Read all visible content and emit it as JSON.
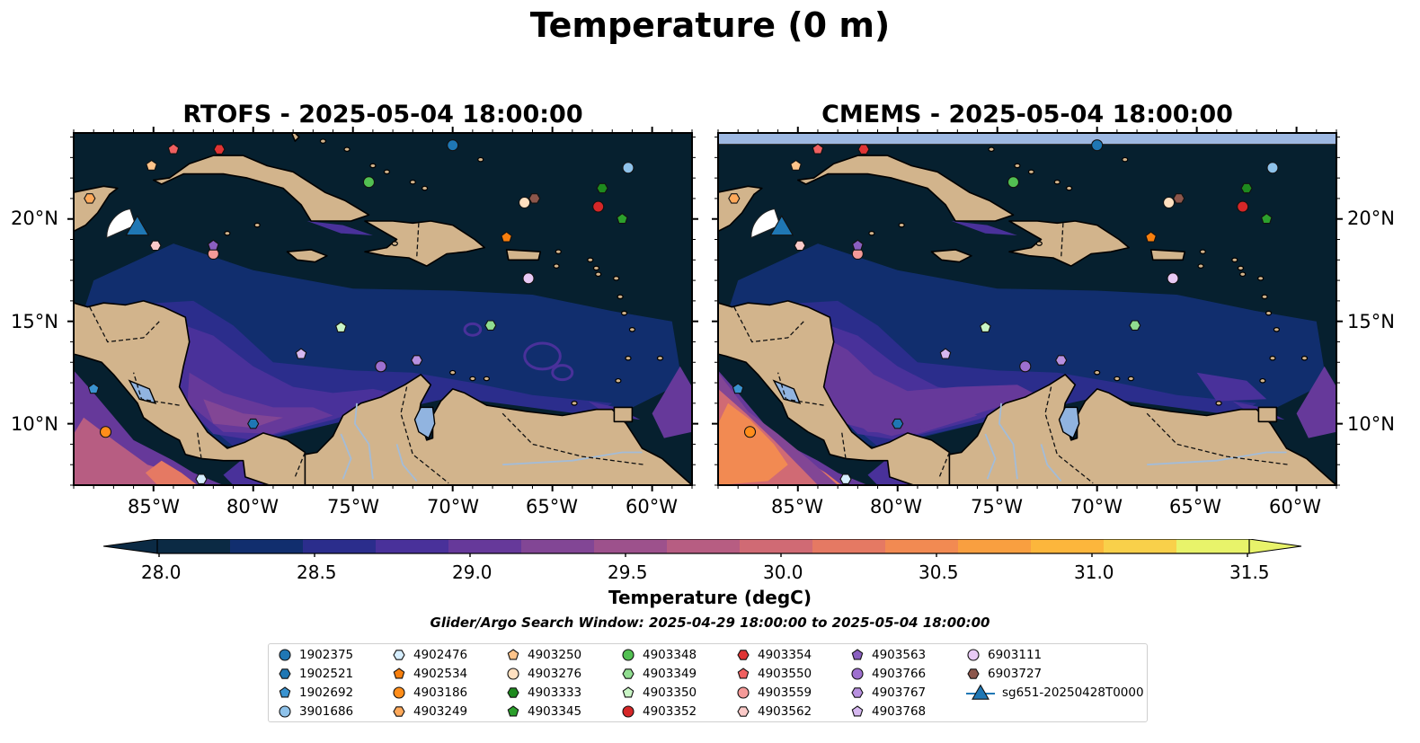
{
  "figure": {
    "title": "Temperature (0 m)",
    "search_window": "Glider/Argo Search Window: 2025-04-29 18:00:00 to 2025-05-04 18:00:00"
  },
  "panels": [
    {
      "id": "rtofs",
      "title": "RTOFS - 2025-05-04 18:00:00"
    },
    {
      "id": "cmems",
      "title": "CMEMS - 2025-05-04 18:00:00"
    }
  ],
  "axes": {
    "lon_labels": [
      "85°W",
      "80°W",
      "75°W",
      "70°W",
      "65°W",
      "60°W"
    ],
    "lat_labels": [
      "20°N",
      "15°N",
      "10°N"
    ]
  },
  "colorbar": {
    "label": "Temperature (degC)",
    "ticks": [
      "28.0",
      "28.5",
      "29.0",
      "29.5",
      "30.0",
      "30.5",
      "31.0",
      "31.5"
    ],
    "min": 28.0,
    "max": 31.5,
    "colors": [
      "#0b2a44",
      "#112e6e",
      "#2b2d8c",
      "#49319a",
      "#66399a",
      "#824695",
      "#9d518c",
      "#b75d82",
      "#d06a74",
      "#e57963",
      "#f28a52",
      "#f99f40",
      "#fcb63c",
      "#f9d04a",
      "#e8f36a"
    ]
  },
  "colors": {
    "land": "#d2b48c",
    "deep_ocean": "#06202f",
    "coastline": "#000000",
    "rivers": "#a3bcd8",
    "glider": "#1f77b4"
  },
  "legend": [
    {
      "label": "1902375",
      "marker": "circle",
      "color": "#1f77b4"
    },
    {
      "label": "1902521",
      "marker": "hexagon",
      "color": "#1f77b4"
    },
    {
      "label": "1902692",
      "marker": "pentagon",
      "color": "#3a93d0"
    },
    {
      "label": "3901686",
      "marker": "circle",
      "color": "#8ec2ea"
    },
    {
      "label": "4902476",
      "marker": "hexagon",
      "color": "#d6eeff"
    },
    {
      "label": "4902534",
      "marker": "pentagon",
      "color": "#f77f0e"
    },
    {
      "label": "4903186",
      "marker": "circle",
      "color": "#ff8d1a"
    },
    {
      "label": "4903249",
      "marker": "hexagon",
      "color": "#ffa95a"
    },
    {
      "label": "4903250",
      "marker": "pentagon",
      "color": "#ffc48a"
    },
    {
      "label": "4903276",
      "marker": "circle",
      "color": "#ffe0c0"
    },
    {
      "label": "4903333",
      "marker": "hexagon",
      "color": "#1e8a1e"
    },
    {
      "label": "4903345",
      "marker": "pentagon",
      "color": "#2ca02c"
    },
    {
      "label": "4903348",
      "marker": "circle",
      "color": "#52c052"
    },
    {
      "label": "4903349",
      "marker": "hexagon",
      "color": "#90dd90"
    },
    {
      "label": "4903350",
      "marker": "pentagon",
      "color": "#c9f5c5"
    },
    {
      "label": "4903352",
      "marker": "circle",
      "color": "#d62728"
    },
    {
      "label": "4903354",
      "marker": "hexagon",
      "color": "#e03434"
    },
    {
      "label": "4903550",
      "marker": "pentagon",
      "color": "#f06060"
    },
    {
      "label": "4903559",
      "marker": "circle",
      "color": "#f59a98"
    },
    {
      "label": "4903562",
      "marker": "hexagon",
      "color": "#fbcac8"
    },
    {
      "label": "4903563",
      "marker": "pentagon",
      "color": "#8a5fc0"
    },
    {
      "label": "4903766",
      "marker": "circle",
      "color": "#9e70cf"
    },
    {
      "label": "4903767",
      "marker": "hexagon",
      "color": "#b890e0"
    },
    {
      "label": "4903768",
      "marker": "pentagon",
      "color": "#d6b8f0"
    },
    {
      "label": "6903111",
      "marker": "circle",
      "color": "#e8caf5"
    },
    {
      "label": "6903727",
      "marker": "hexagon",
      "color": "#8c564b"
    },
    {
      "label": "sg651-20250428T0000",
      "marker": "triangle",
      "color": "#1f77b4"
    }
  ],
  "floats": [
    {
      "id": "1902375",
      "lon": -70.0,
      "lat": 23.6
    },
    {
      "id": "1902521",
      "lon": -80.0,
      "lat": 10.0
    },
    {
      "id": "1902692",
      "lon": -88.0,
      "lat": 11.7
    },
    {
      "id": "3901686",
      "lon": -61.2,
      "lat": 22.5
    },
    {
      "id": "4902476",
      "lon": -82.6,
      "lat": 7.3
    },
    {
      "id": "4902534",
      "lon": -67.3,
      "lat": 19.1
    },
    {
      "id": "4903186",
      "lon": -87.4,
      "lat": 9.6
    },
    {
      "id": "4903249",
      "lon": -88.2,
      "lat": 21.0
    },
    {
      "id": "4903250",
      "lon": -85.1,
      "lat": 22.6
    },
    {
      "id": "4903276",
      "lon": -66.4,
      "lat": 20.8
    },
    {
      "id": "4903333",
      "lon": -62.5,
      "lat": 21.5
    },
    {
      "id": "4903345",
      "lon": -61.5,
      "lat": 20.0
    },
    {
      "id": "4903348",
      "lon": -74.2,
      "lat": 21.8
    },
    {
      "id": "4903349",
      "lon": -68.1,
      "lat": 14.8
    },
    {
      "id": "4903350",
      "lon": -75.6,
      "lat": 14.7
    },
    {
      "id": "4903352",
      "lon": -62.7,
      "lat": 20.6
    },
    {
      "id": "4903354",
      "lon": -81.7,
      "lat": 23.4
    },
    {
      "id": "4903550",
      "lon": -84.0,
      "lat": 23.4
    },
    {
      "id": "4903559",
      "lon": -82.0,
      "lat": 18.3
    },
    {
      "id": "4903562",
      "lon": -84.9,
      "lat": 18.7
    },
    {
      "id": "4903563",
      "lon": -82.0,
      "lat": 18.7
    },
    {
      "id": "4903766",
      "lon": -73.6,
      "lat": 12.8
    },
    {
      "id": "4903767",
      "lon": -71.8,
      "lat": 13.1
    },
    {
      "id": "4903768",
      "lon": -77.6,
      "lat": 13.4
    },
    {
      "id": "6903111",
      "lon": -66.2,
      "lat": 17.1
    },
    {
      "id": "6903727",
      "lon": -65.9,
      "lat": 21.0
    }
  ],
  "glider": {
    "id": "sg651-20250428T0000",
    "lon": -85.9,
    "lat": 19.7
  }
}
